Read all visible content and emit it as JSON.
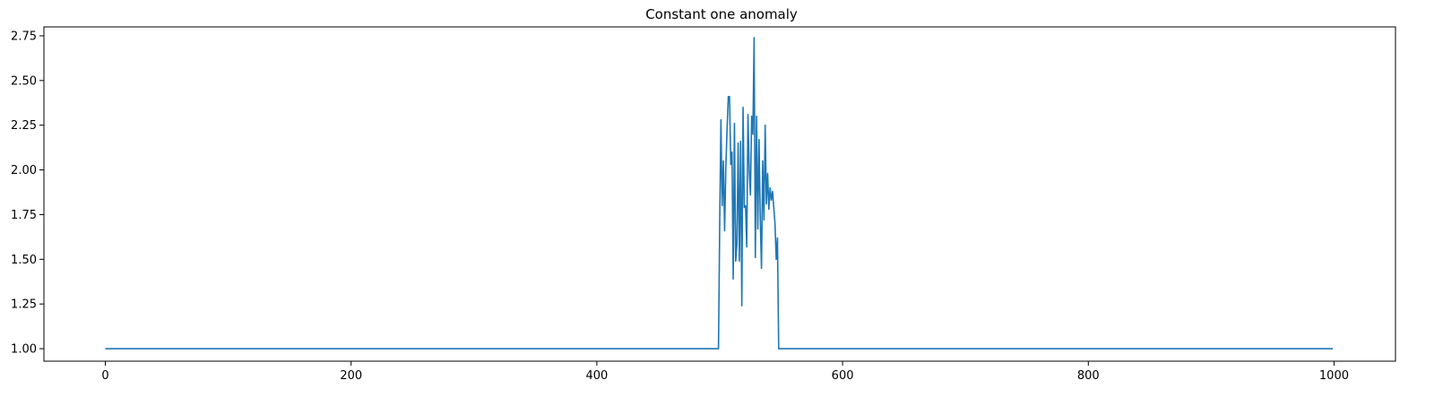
{
  "chart_data": {
    "type": "line",
    "title": "Constant one anomaly",
    "xlabel": "",
    "ylabel": "",
    "xlim": [
      -50,
      1050
    ],
    "ylim": [
      0.93,
      2.8
    ],
    "x_ticks": [
      0,
      200,
      400,
      600,
      800,
      1000
    ],
    "y_ticks": [
      1.0,
      1.25,
      1.5,
      1.75,
      2.0,
      2.25,
      2.5,
      2.75
    ],
    "x_tick_labels": [
      "0",
      "200",
      "400",
      "600",
      "800",
      "1000"
    ],
    "y_tick_labels": [
      "1.00",
      "1.25",
      "1.50",
      "1.75",
      "2.00",
      "2.25",
      "2.50",
      "2.75"
    ],
    "grid": false,
    "legend": false,
    "colors": {
      "series": "#1f77b4",
      "axes": "#000000",
      "background": "#ffffff"
    },
    "series": [
      {
        "x": [
          0,
          499,
          500,
          501,
          502,
          503,
          504,
          505,
          506,
          507,
          508,
          509,
          510,
          511,
          512,
          513,
          514,
          515,
          516,
          517,
          518,
          519,
          520,
          521,
          522,
          523,
          524,
          525,
          526,
          527,
          528,
          529,
          530,
          531,
          532,
          533,
          534,
          535,
          536,
          537,
          538,
          539,
          540,
          541,
          542,
          543,
          544,
          545,
          546,
          547,
          548,
          549,
          550,
          551,
          999
        ],
        "y": [
          1.0,
          1.0,
          1.7,
          2.28,
          1.8,
          2.05,
          1.66,
          2.02,
          2.23,
          2.41,
          2.41,
          2.03,
          2.1,
          1.39,
          2.26,
          1.49,
          1.58,
          2.15,
          1.49,
          2.16,
          1.24,
          2.35,
          1.79,
          1.8,
          1.57,
          2.31,
          2.0,
          1.86,
          2.3,
          2.2,
          2.74,
          1.51,
          2.3,
          1.67,
          2.17,
          1.73,
          1.45,
          2.05,
          1.72,
          2.25,
          1.81,
          1.98,
          1.78,
          1.9,
          1.83,
          1.88,
          1.79,
          1.7,
          1.5,
          1.62,
          1.0,
          1.0,
          1.0,
          1.0,
          1.0
        ]
      }
    ]
  }
}
